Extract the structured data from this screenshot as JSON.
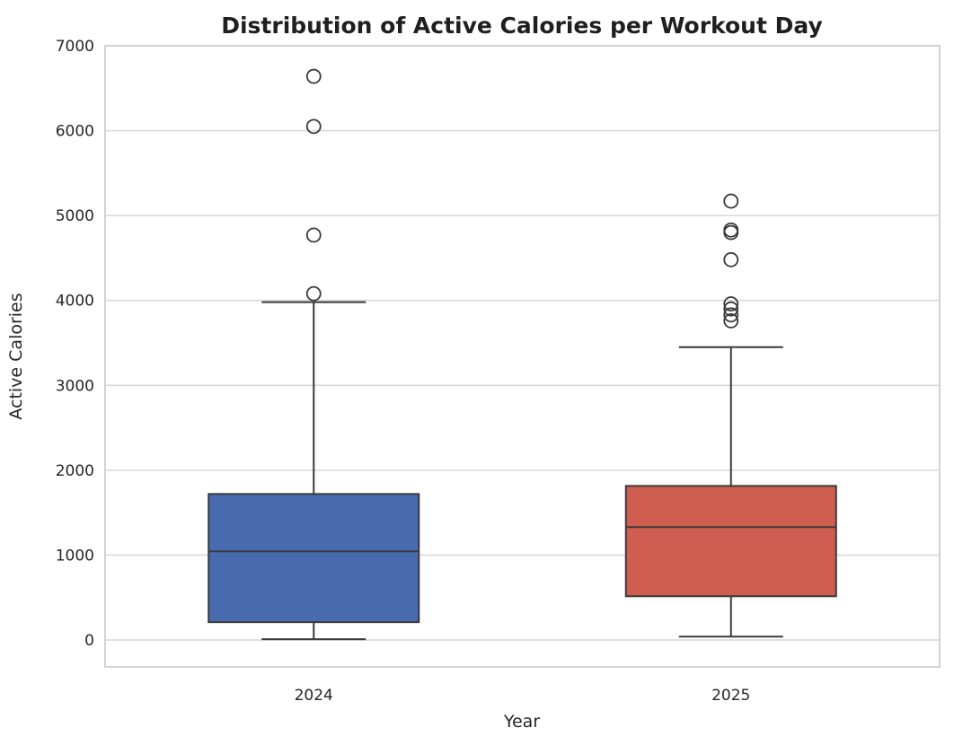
{
  "chart_data": {
    "type": "boxplot",
    "title": "Distribution of Active Calories per Workout Day",
    "xlabel": "Year",
    "ylabel": "Active Calories",
    "categories": [
      "2024",
      "2025"
    ],
    "yticks": [
      0,
      1000,
      2000,
      3000,
      4000,
      5000,
      6000,
      7000
    ],
    "ylim": [
      -317,
      7000
    ],
    "grid": "horizontal-only",
    "legend": "none",
    "series": [
      {
        "name": "2024",
        "color": "#486AAF",
        "whisker_low": 10,
        "q1": 210,
        "median": 1045,
        "q3": 1720,
        "whisker_high": 3980,
        "outliers": [
          4080,
          4770,
          6050,
          6640
        ]
      },
      {
        "name": "2025",
        "color": "#D05E50",
        "whisker_low": 40,
        "q1": 515,
        "median": 1330,
        "q3": 1815,
        "whisker_high": 3450,
        "outliers": [
          3760,
          3830,
          3900,
          3960,
          4480,
          4800,
          4830,
          5170
        ]
      }
    ],
    "style": {
      "box_edge_color": "#3a3a3a",
      "median_color": "#3a3a3a",
      "whisker_color": "#3a3a3a",
      "outlier_edge_color": "#3a3a3a",
      "grid_color": "#d9d9d9",
      "spine_color": "#d2d2d2",
      "text_color": "#262626",
      "background": "#ffffff"
    }
  }
}
